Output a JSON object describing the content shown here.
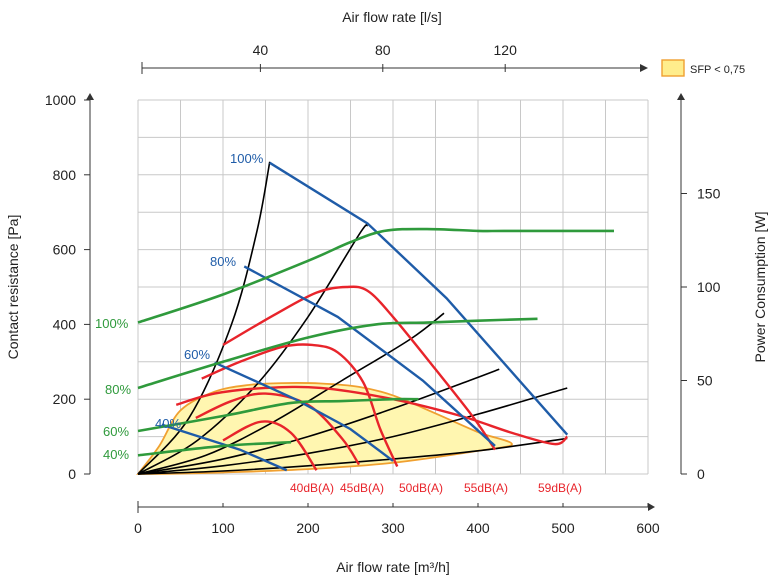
{
  "chart_data": {
    "type": "line",
    "title": "",
    "xlabel": "Air flow rate [m³/h]",
    "ylabel": "Contact resistance [Pa]",
    "x2label": "Air flow rate [l/s]",
    "y2label": "Power Consumption [W]",
    "xlim": [
      0,
      600
    ],
    "ylim": [
      0,
      1000
    ],
    "x2lim": [
      0,
      166.67
    ],
    "y2lim": [
      0,
      200
    ],
    "xticks": [
      "0",
      "100",
      "200",
      "300",
      "400",
      "500",
      "600"
    ],
    "yticks": [
      "0",
      "200",
      "400",
      "600",
      "800",
      "1000"
    ],
    "x2ticks": [
      "40",
      "80",
      "120"
    ],
    "y2ticks": [
      "0",
      "50",
      "100",
      "150"
    ],
    "grid": true,
    "legend": {
      "position": "top-right",
      "label": "SFP < 0,75",
      "color": "#ffed8c",
      "border": "#f0a030"
    },
    "colors": {
      "fan": "#1f5ca8",
      "sound": "#e8242b",
      "power": "#2f9a3c",
      "system": "#000000",
      "sfp_fill": "#fff6b0",
      "sfp_line": "#f0a030",
      "sound_label": "#e8242b",
      "grid": "#c8c8c8"
    },
    "sfp_area": {
      "x": [
        0,
        25,
        50,
        90,
        130,
        170,
        215,
        260,
        300,
        350,
        400,
        440,
        400,
        300,
        200,
        100,
        50,
        0
      ],
      "y": [
        0,
        75,
        170,
        220,
        238,
        243,
        242,
        233,
        210,
        162,
        112,
        80,
        62,
        30,
        13,
        4,
        1,
        0
      ]
    },
    "fan_curves": [
      {
        "label": "100%",
        "x": [
          155,
          270,
          363,
          505
        ],
        "y": [
          832,
          670,
          470,
          105
        ]
      },
      {
        "label": "80%",
        "x": [
          125,
          235,
          335,
          420
        ],
        "y": [
          555,
          420,
          250,
          75
        ]
      },
      {
        "label": "60%",
        "x": [
          90,
          185,
          250,
          300
        ],
        "y": [
          298,
          200,
          120,
          35
        ]
      },
      {
        "label": "40%",
        "x": [
          28,
          120,
          175
        ],
        "y": [
          132,
          65,
          10
        ]
      }
    ],
    "sound_curves": [
      {
        "label": "40dB(A)",
        "x": [
          100,
          145,
          180,
          210
        ],
        "y": [
          90,
          140,
          110,
          10
        ]
      },
      {
        "label": "45dB(A)",
        "x": [
          68,
          110,
          150,
          200,
          240,
          260
        ],
        "y": [
          150,
          195,
          215,
          185,
          95,
          25
        ]
      },
      {
        "label": "50dB(A)",
        "x": [
          75,
          120,
          170,
          205,
          235,
          265,
          285,
          305
        ],
        "y": [
          255,
          300,
          340,
          345,
          325,
          245,
          120,
          20
        ]
      },
      {
        "label": "55dB(A)",
        "x": [
          100,
          160,
          210,
          245,
          270,
          300,
          350,
          395,
          420
        ],
        "y": [
          345,
          425,
          485,
          500,
          490,
          420,
          280,
          150,
          65
        ]
      },
      {
        "label": "59dB(A)",
        "x": [
          45,
          90,
          150,
          215,
          300,
          380,
          440,
          490,
          505
        ],
        "y": [
          185,
          215,
          230,
          230,
          200,
          155,
          110,
          80,
          100
        ]
      }
    ],
    "system_curves": [
      {
        "x": [
          0,
          60,
          110,
          140,
          155
        ],
        "y": [
          0,
          150,
          400,
          650,
          835
        ]
      },
      {
        "x": [
          0,
          70,
          140,
          200,
          260,
          270
        ],
        "y": [
          0,
          90,
          240,
          420,
          640,
          665
        ]
      },
      {
        "x": [
          0,
          80,
          160,
          240,
          320,
          360
        ],
        "y": [
          0,
          50,
          140,
          250,
          360,
          430
        ]
      },
      {
        "x": [
          0,
          100,
          200,
          300,
          390,
          425
        ],
        "y": [
          0,
          40,
          100,
          175,
          250,
          280
        ]
      },
      {
        "x": [
          0,
          100,
          200,
          300,
          400,
          505
        ],
        "y": [
          0,
          22,
          55,
          100,
          160,
          230
        ]
      },
      {
        "x": [
          0,
          100,
          200,
          300,
          400,
          505
        ],
        "y": [
          0,
          8,
          22,
          40,
          62,
          95
        ]
      }
    ],
    "power_curves": [
      {
        "label": "100%",
        "x": [
          0,
          100,
          200,
          250,
          290,
          340,
          400,
          430,
          500,
          560
        ],
        "y": [
          81,
          96,
          114,
          124,
          130,
          131,
          130,
          130,
          130,
          130
        ]
      },
      {
        "label": "80%",
        "x": [
          0,
          100,
          200,
          280,
          340,
          400,
          470
        ],
        "y": [
          46,
          60,
          73,
          80,
          81,
          82,
          83
        ]
      },
      {
        "label": "60%",
        "x": [
          0,
          100,
          180,
          240,
          300,
          330
        ],
        "y": [
          23,
          31,
          38,
          39,
          40,
          40
        ]
      },
      {
        "label": "40%",
        "x": [
          0,
          100,
          180
        ],
        "y": [
          10,
          15,
          17
        ]
      }
    ],
    "power_labels": [
      "100%",
      "80%",
      "60%",
      "40%"
    ]
  }
}
